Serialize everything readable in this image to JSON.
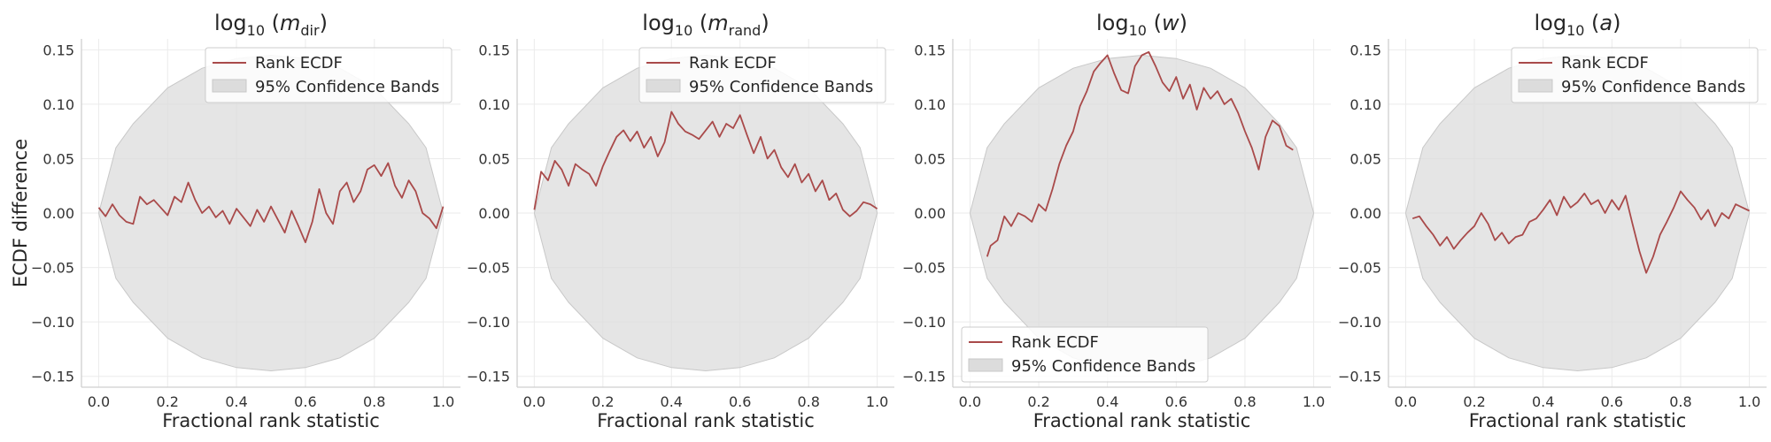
{
  "colors": {
    "line": "#a94a4a",
    "band": "#dcdcdc",
    "band_edge": "#c8c8c8"
  },
  "shared": {
    "xlabel": "Fractional rank statistic",
    "ylabel": "ECDF difference",
    "xticks": [
      0.0,
      0.2,
      0.4,
      0.6,
      0.8,
      1.0
    ],
    "xtick_labels": [
      "0.0",
      "0.2",
      "0.4",
      "0.6",
      "0.8",
      "1.0"
    ],
    "yticks": [
      -0.15,
      -0.1,
      -0.05,
      0.0,
      0.05,
      0.1,
      0.15
    ],
    "ytick_labels": [
      "−0.15",
      "−0.10",
      "−0.05",
      "0.00",
      "0.05",
      "0.10",
      "0.15"
    ],
    "legend": {
      "line_label": "Rank ECDF",
      "band_label": "95% Confidence Bands"
    }
  },
  "chart_data": [
    {
      "type": "line",
      "title_parts": {
        "base": "log",
        "sub": "10",
        "open": "(",
        "var": "m",
        "var_sub": "dir",
        "close": ")"
      },
      "xlabel": "Fractional rank statistic",
      "ylabel": "ECDF difference",
      "xlim": [
        -0.05,
        1.05
      ],
      "ylim": [
        -0.16,
        0.16
      ],
      "legend_position": "upper-right",
      "band": {
        "x": [
          0.0,
          0.05,
          0.1,
          0.2,
          0.3,
          0.4,
          0.5,
          0.6,
          0.7,
          0.8,
          0.9,
          0.95,
          1.0
        ],
        "upper": [
          0.0,
          0.06,
          0.082,
          0.115,
          0.133,
          0.142,
          0.145,
          0.142,
          0.133,
          0.115,
          0.082,
          0.06,
          0.0
        ],
        "lower": [
          0.0,
          -0.06,
          -0.082,
          -0.115,
          -0.133,
          -0.142,
          -0.145,
          -0.142,
          -0.133,
          -0.115,
          -0.082,
          -0.06,
          0.0
        ]
      },
      "series": [
        {
          "name": "Rank ECDF",
          "x": [
            0.0,
            0.02,
            0.04,
            0.06,
            0.08,
            0.1,
            0.12,
            0.14,
            0.16,
            0.18,
            0.2,
            0.22,
            0.24,
            0.26,
            0.28,
            0.3,
            0.32,
            0.34,
            0.36,
            0.38,
            0.4,
            0.42,
            0.44,
            0.46,
            0.48,
            0.5,
            0.52,
            0.54,
            0.56,
            0.58,
            0.6,
            0.62,
            0.64,
            0.66,
            0.68,
            0.7,
            0.72,
            0.74,
            0.76,
            0.78,
            0.8,
            0.82,
            0.84,
            0.86,
            0.88,
            0.9,
            0.92,
            0.94,
            0.96,
            0.98,
            1.0
          ],
          "y": [
            0.005,
            -0.003,
            0.008,
            -0.002,
            -0.008,
            -0.01,
            0.015,
            0.008,
            0.012,
            0.005,
            -0.002,
            0.015,
            0.01,
            0.028,
            0.012,
            0.0,
            0.006,
            -0.004,
            0.002,
            -0.01,
            0.004,
            -0.004,
            -0.012,
            0.003,
            -0.008,
            0.006,
            -0.006,
            -0.018,
            0.002,
            -0.012,
            -0.027,
            -0.008,
            0.022,
            0.0,
            -0.01,
            0.02,
            0.028,
            0.01,
            0.02,
            0.04,
            0.044,
            0.034,
            0.046,
            0.025,
            0.014,
            0.03,
            0.02,
            0.0,
            -0.005,
            -0.014,
            0.006
          ]
        }
      ]
    },
    {
      "type": "line",
      "title_parts": {
        "base": "log",
        "sub": "10",
        "open": "(",
        "var": "m",
        "var_sub": "rand",
        "close": ")"
      },
      "xlabel": "Fractional rank statistic",
      "xlim": [
        -0.05,
        1.05
      ],
      "ylim": [
        -0.16,
        0.16
      ],
      "legend_position": "upper-right",
      "band": {
        "x": [
          0.0,
          0.05,
          0.1,
          0.2,
          0.3,
          0.4,
          0.5,
          0.6,
          0.7,
          0.8,
          0.9,
          0.95,
          1.0
        ],
        "upper": [
          0.0,
          0.06,
          0.082,
          0.115,
          0.133,
          0.142,
          0.145,
          0.142,
          0.133,
          0.115,
          0.082,
          0.06,
          0.0
        ],
        "lower": [
          0.0,
          -0.06,
          -0.082,
          -0.115,
          -0.133,
          -0.142,
          -0.145,
          -0.142,
          -0.133,
          -0.115,
          -0.082,
          -0.06,
          0.0
        ]
      },
      "series": [
        {
          "name": "Rank ECDF",
          "x": [
            0.0,
            0.02,
            0.04,
            0.06,
            0.08,
            0.1,
            0.12,
            0.14,
            0.16,
            0.18,
            0.2,
            0.22,
            0.24,
            0.26,
            0.28,
            0.3,
            0.32,
            0.34,
            0.36,
            0.38,
            0.4,
            0.42,
            0.44,
            0.46,
            0.48,
            0.5,
            0.52,
            0.54,
            0.56,
            0.58,
            0.6,
            0.62,
            0.64,
            0.66,
            0.68,
            0.7,
            0.72,
            0.74,
            0.76,
            0.78,
            0.8,
            0.82,
            0.84,
            0.86,
            0.88,
            0.9,
            0.92,
            0.94,
            0.96,
            0.98,
            1.0
          ],
          "y": [
            0.003,
            0.038,
            0.03,
            0.048,
            0.04,
            0.025,
            0.045,
            0.04,
            0.036,
            0.025,
            0.043,
            0.057,
            0.07,
            0.076,
            0.066,
            0.075,
            0.06,
            0.07,
            0.052,
            0.065,
            0.093,
            0.082,
            0.075,
            0.072,
            0.068,
            0.076,
            0.084,
            0.07,
            0.082,
            0.078,
            0.09,
            0.072,
            0.055,
            0.07,
            0.05,
            0.058,
            0.042,
            0.033,
            0.045,
            0.028,
            0.036,
            0.02,
            0.03,
            0.012,
            0.018,
            0.003,
            -0.003,
            0.002,
            0.01,
            0.008,
            0.004
          ]
        }
      ]
    },
    {
      "type": "line",
      "title_parts": {
        "base": "log",
        "sub": "10",
        "open": "(",
        "var": "w",
        "var_sub": "",
        "close": ")"
      },
      "xlabel": "Fractional rank statistic",
      "xlim": [
        -0.05,
        1.05
      ],
      "ylim": [
        -0.16,
        0.16
      ],
      "legend_position": "lower-left",
      "band": {
        "x": [
          0.0,
          0.05,
          0.1,
          0.2,
          0.3,
          0.4,
          0.5,
          0.6,
          0.7,
          0.8,
          0.9,
          0.95,
          1.0
        ],
        "upper": [
          0.0,
          0.06,
          0.082,
          0.115,
          0.133,
          0.142,
          0.145,
          0.142,
          0.133,
          0.115,
          0.082,
          0.06,
          0.0
        ],
        "lower": [
          0.0,
          -0.06,
          -0.082,
          -0.115,
          -0.133,
          -0.142,
          -0.145,
          -0.142,
          -0.133,
          -0.115,
          -0.082,
          -0.06,
          0.0
        ]
      },
      "series": [
        {
          "name": "Rank ECDF",
          "x": [
            0.05,
            0.06,
            0.08,
            0.1,
            0.12,
            0.14,
            0.16,
            0.18,
            0.2,
            0.22,
            0.24,
            0.26,
            0.28,
            0.3,
            0.32,
            0.34,
            0.36,
            0.38,
            0.4,
            0.42,
            0.44,
            0.46,
            0.48,
            0.5,
            0.52,
            0.54,
            0.56,
            0.58,
            0.6,
            0.62,
            0.64,
            0.66,
            0.68,
            0.7,
            0.72,
            0.74,
            0.76,
            0.78,
            0.8,
            0.82,
            0.84,
            0.86,
            0.88,
            0.9,
            0.92,
            0.94
          ],
          "y": [
            -0.04,
            -0.03,
            -0.025,
            -0.003,
            -0.012,
            0.0,
            -0.003,
            -0.008,
            0.008,
            0.002,
            0.022,
            0.045,
            0.062,
            0.075,
            0.098,
            0.112,
            0.13,
            0.138,
            0.145,
            0.128,
            0.113,
            0.11,
            0.135,
            0.145,
            0.148,
            0.135,
            0.12,
            0.112,
            0.125,
            0.105,
            0.118,
            0.095,
            0.115,
            0.105,
            0.112,
            0.1,
            0.105,
            0.092,
            0.075,
            0.06,
            0.04,
            0.07,
            0.085,
            0.08,
            0.062,
            0.058
          ]
        }
      ]
    },
    {
      "type": "line",
      "title_parts": {
        "base": "log",
        "sub": "10",
        "open": "(",
        "var": "a",
        "var_sub": "",
        "close": ")"
      },
      "xlabel": "Fractional rank statistic",
      "xlim": [
        -0.05,
        1.05
      ],
      "ylim": [
        -0.16,
        0.16
      ],
      "legend_position": "upper-right",
      "band": {
        "x": [
          0.0,
          0.05,
          0.1,
          0.2,
          0.3,
          0.4,
          0.5,
          0.6,
          0.7,
          0.8,
          0.9,
          0.95,
          1.0
        ],
        "upper": [
          0.0,
          0.06,
          0.082,
          0.115,
          0.133,
          0.142,
          0.145,
          0.142,
          0.133,
          0.115,
          0.082,
          0.06,
          0.0
        ],
        "lower": [
          0.0,
          -0.06,
          -0.082,
          -0.115,
          -0.133,
          -0.142,
          -0.145,
          -0.142,
          -0.133,
          -0.115,
          -0.082,
          -0.06,
          0.0
        ]
      },
      "series": [
        {
          "name": "Rank ECDF",
          "x": [
            0.02,
            0.04,
            0.06,
            0.08,
            0.1,
            0.12,
            0.14,
            0.16,
            0.18,
            0.2,
            0.22,
            0.24,
            0.26,
            0.28,
            0.3,
            0.32,
            0.34,
            0.36,
            0.38,
            0.4,
            0.42,
            0.44,
            0.46,
            0.48,
            0.5,
            0.52,
            0.54,
            0.56,
            0.58,
            0.6,
            0.62,
            0.64,
            0.66,
            0.68,
            0.7,
            0.72,
            0.74,
            0.76,
            0.78,
            0.8,
            0.82,
            0.84,
            0.86,
            0.88,
            0.9,
            0.92,
            0.94,
            0.96,
            0.98,
            1.0
          ],
          "y": [
            -0.005,
            -0.003,
            -0.012,
            -0.02,
            -0.03,
            -0.022,
            -0.033,
            -0.025,
            -0.018,
            -0.012,
            0.0,
            -0.01,
            -0.025,
            -0.018,
            -0.028,
            -0.022,
            -0.02,
            -0.008,
            -0.005,
            0.003,
            0.012,
            -0.002,
            0.015,
            0.005,
            0.01,
            0.018,
            0.008,
            0.012,
            0.0,
            0.012,
            0.003,
            0.016,
            -0.01,
            -0.035,
            -0.055,
            -0.04,
            -0.02,
            -0.008,
            0.005,
            0.02,
            0.012,
            0.005,
            -0.006,
            0.003,
            -0.012,
            0.0,
            -0.005,
            0.008,
            0.005,
            0.002
          ]
        }
      ]
    }
  ]
}
